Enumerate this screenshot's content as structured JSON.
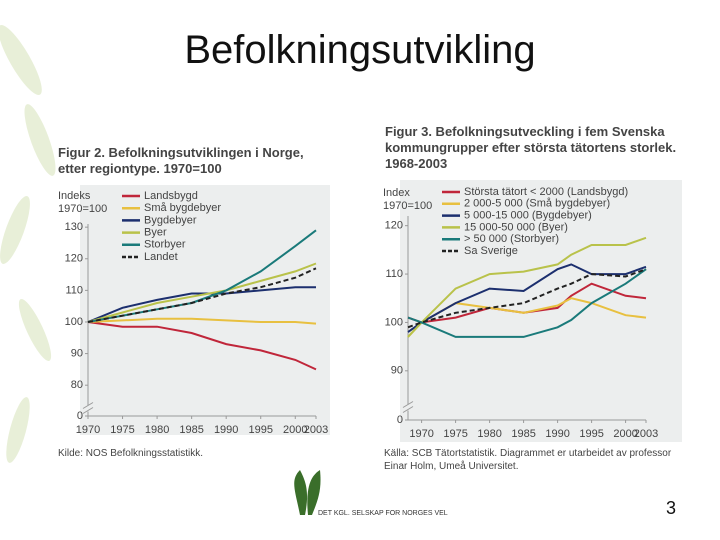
{
  "slide": {
    "title": "Befolkningsutvikling",
    "page_number": "3",
    "logo_text": "DET KGL. SELSKAP FOR NORGES VEL"
  },
  "chart_data": [
    {
      "type": "line",
      "title": "Figur 2. Befolkningsutviklingen i Norge, etter regiontype. 1970=100",
      "y_label": "Indeks 1970=100",
      "source": "Kilde: NOS Befolkningsstatistikk.",
      "x": [
        1970,
        1975,
        1980,
        1985,
        1990,
        1995,
        2000,
        2003
      ],
      "xlim": [
        1970,
        2003
      ],
      "xticks": [
        1970,
        1975,
        1980,
        1985,
        1990,
        1995,
        2000,
        2003
      ],
      "ylim": [
        0,
        131
      ],
      "yticks": [
        0,
        80,
        90,
        100,
        110,
        120,
        130
      ],
      "axis_break": [
        0,
        75
      ],
      "series": [
        {
          "name": "Landsbygd",
          "color": "#c0263a",
          "values": [
            100,
            98.5,
            98.5,
            96.5,
            93,
            91,
            88,
            85
          ]
        },
        {
          "name": "Små bygdebyer",
          "color": "#e8c040",
          "values": [
            100,
            100.5,
            101,
            101,
            100.5,
            100,
            100,
            99.5
          ]
        },
        {
          "name": "Bygdebyer",
          "color": "#1c2f6e",
          "values": [
            100,
            104.5,
            107,
            109,
            109,
            110,
            111,
            111
          ]
        },
        {
          "name": "Byer",
          "color": "#b9c24a",
          "values": [
            100,
            103,
            106,
            108,
            110,
            113,
            116,
            118.5
          ]
        },
        {
          "name": "Storbyer",
          "color": "#1a7a7a",
          "values": [
            100,
            102,
            104,
            106,
            110,
            116,
            124,
            129
          ]
        },
        {
          "name": "Landet",
          "color": "#222222",
          "dashed": true,
          "values": [
            100,
            102,
            104,
            106,
            109,
            111,
            114,
            117
          ]
        }
      ]
    },
    {
      "type": "line",
      "title": "Figur 3. Befolkningsutveckling i fem Svenska kommungrupper efter största tätortens storlek. 1968-2003",
      "y_label": "Index 1970=100",
      "source": "Källa: SCB Tätortstatistik. Diagrammet er utarbeidet av professor Einar Holm, Umeå Universitet.",
      "x": [
        1968,
        1970,
        1975,
        1980,
        1985,
        1990,
        1992,
        1995,
        2000,
        2003
      ],
      "xlim": [
        1968,
        2003
      ],
      "xticks": [
        1970,
        1975,
        1980,
        1985,
        1990,
        1995,
        2000,
        2003
      ],
      "ylim": [
        0,
        122
      ],
      "yticks": [
        0,
        90,
        100,
        110,
        120
      ],
      "axis_break": [
        0,
        85
      ],
      "series": [
        {
          "name": "Största tätort < 2000 (Landsbygd)",
          "color": "#c0263a",
          "values": [
            101,
            100,
            101,
            103,
            102,
            103,
            105.5,
            108,
            105.5,
            105
          ]
        },
        {
          "name": "2 000-5 000 (Små bygdebyer)",
          "color": "#e8c040",
          "values": [
            97,
            100,
            104,
            103,
            102,
            103.5,
            105,
            104,
            101.5,
            101
          ]
        },
        {
          "name": "5 000-15 000 (Bygdebyer)",
          "color": "#1c2f6e",
          "values": [
            98,
            100,
            104,
            107,
            106.5,
            111,
            112,
            110,
            110,
            111.5
          ]
        },
        {
          "name": "15 000-50 000 (Byer)",
          "color": "#b9c24a",
          "values": [
            97,
            100,
            107,
            110,
            110.5,
            112,
            114,
            116,
            116,
            117.5
          ]
        },
        {
          "name": "> 50 000 (Storbyer)",
          "color": "#1a7a7a",
          "values": [
            101,
            100,
            97,
            97,
            97,
            99,
            100.5,
            104,
            108,
            111
          ]
        },
        {
          "name": "Sa Sverige",
          "color": "#222222",
          "dashed": true,
          "values": [
            99,
            100,
            102,
            103,
            104,
            107,
            108,
            110,
            109.5,
            111
          ]
        }
      ]
    }
  ]
}
